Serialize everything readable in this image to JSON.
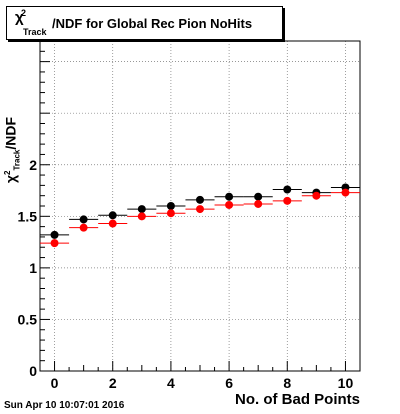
{
  "title": {
    "chi": "χ",
    "sup": "2",
    "sub": "Track",
    "rest": "/NDF for Global Rec Pion NoHits"
  },
  "ylabel": {
    "chi": "χ",
    "sup": "2",
    "sub": "Track",
    "rest": "/NDF"
  },
  "xlabel": "No. of Bad Points",
  "footer": "Sun Apr 10 10:07:01 2016",
  "chart_data": {
    "type": "scatter",
    "title": "χ²_Track/NDF for Global Rec Pion NoHits",
    "xlabel": "No. of Bad Points",
    "ylabel": "χ²_Track/NDF",
    "xlim": [
      -0.5,
      10.5
    ],
    "ylim": [
      0,
      3.2
    ],
    "x_ticks": [
      0,
      2,
      4,
      6,
      8,
      10
    ],
    "y_ticks": [
      0,
      0.5,
      1,
      1.5,
      2
    ],
    "y_tick_labels": [
      "0",
      "0.5",
      "1",
      "1.5",
      "2"
    ],
    "grid": true,
    "x": [
      0,
      1,
      2,
      3,
      4,
      5,
      6,
      7,
      8,
      9,
      10
    ],
    "series": [
      {
        "color": "#000000",
        "values": [
          1.32,
          1.47,
          1.51,
          1.57,
          1.6,
          1.66,
          1.69,
          1.69,
          1.76,
          1.73,
          1.78
        ]
      },
      {
        "color": "#ff0000",
        "values": [
          1.24,
          1.39,
          1.43,
          1.5,
          1.53,
          1.57,
          1.61,
          1.62,
          1.65,
          1.7,
          1.73
        ]
      }
    ]
  }
}
